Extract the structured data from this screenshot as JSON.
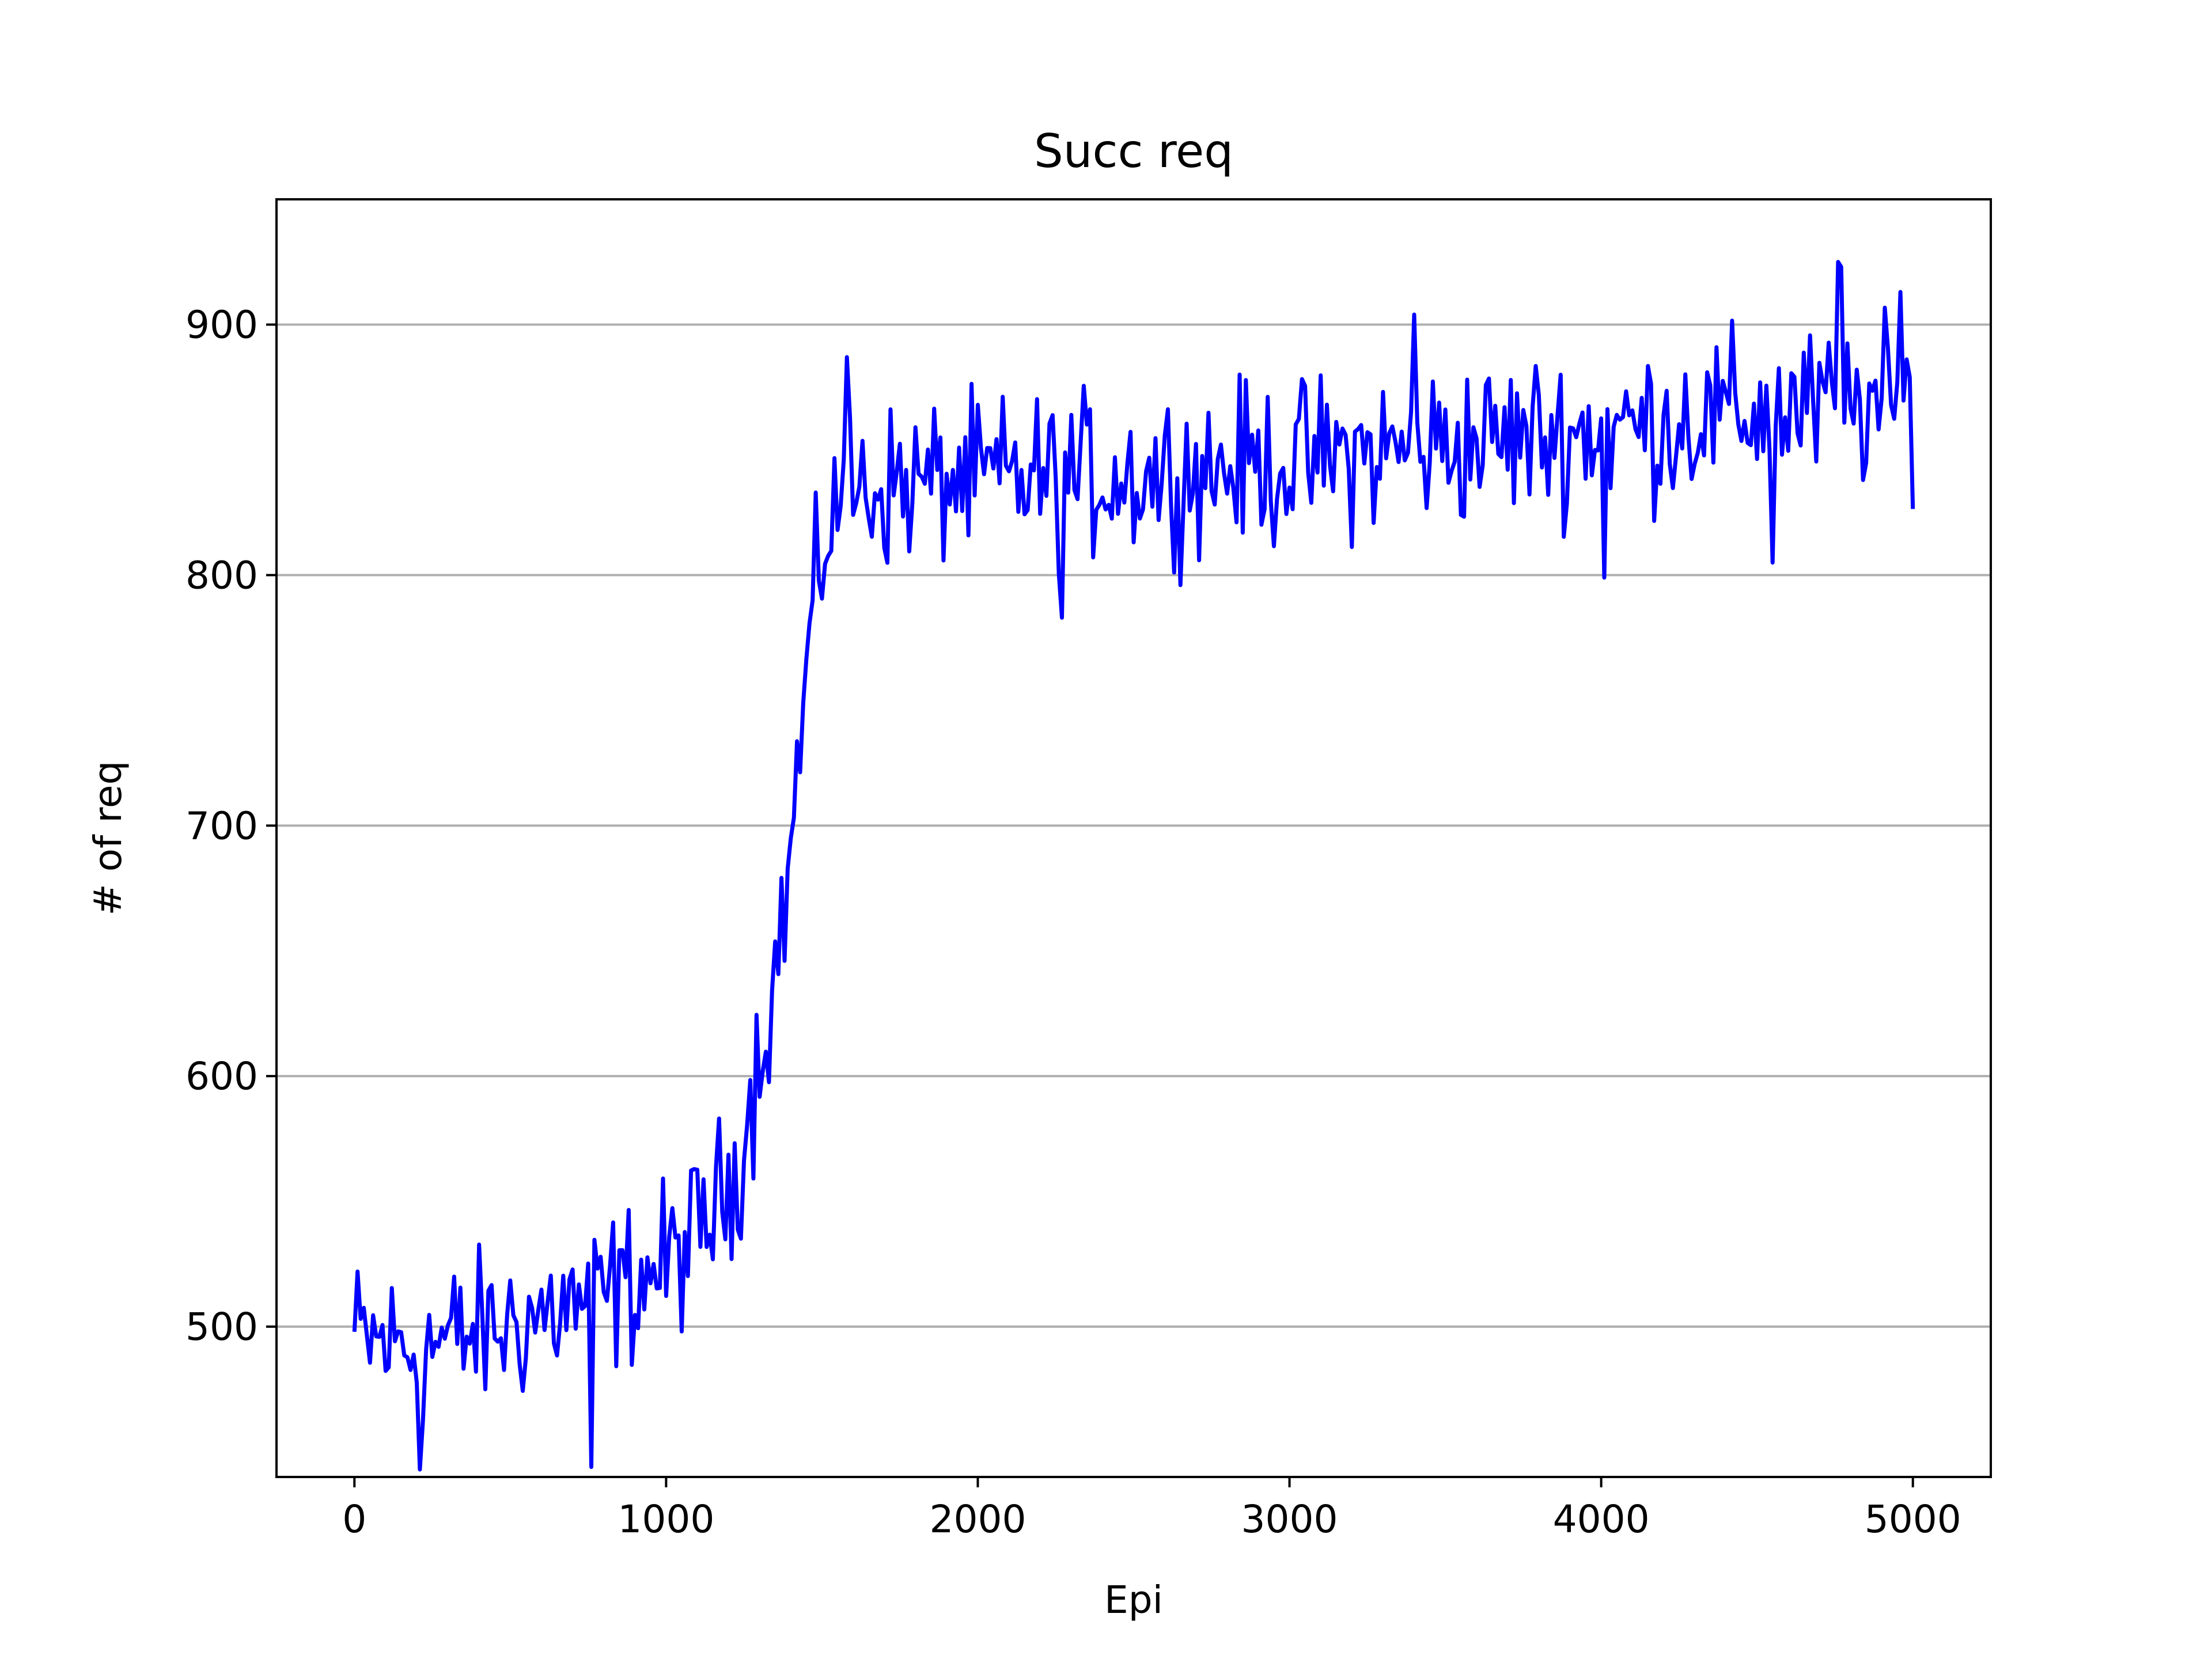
{
  "colors": {
    "series": "#0000ff",
    "grid": "#b0b0b0",
    "axes": "#000000",
    "background": "#ffffff"
  },
  "chart_data": {
    "type": "line",
    "title": "Succ req",
    "xlabel": "Epi",
    "ylabel": "# of req",
    "xlim": [
      -250,
      5250
    ],
    "ylim": [
      440,
      950
    ],
    "xticks": [
      0,
      1000,
      2000,
      3000,
      4000,
      5000
    ],
    "yticks": [
      500,
      600,
      700,
      800,
      900
    ],
    "grid": "y-major",
    "legend": "none",
    "series": [
      {
        "x_start": 0,
        "x_end": 5000,
        "x_step": 10,
        "trend_points": [
          [
            0,
            495
          ],
          [
            200,
            492
          ],
          [
            400,
            497
          ],
          [
            600,
            505
          ],
          [
            800,
            512
          ],
          [
            1000,
            525
          ],
          [
            1100,
            537
          ],
          [
            1200,
            555
          ],
          [
            1250,
            575
          ],
          [
            1300,
            610
          ],
          [
            1350,
            640
          ],
          [
            1400,
            690
          ],
          [
            1450,
            760
          ],
          [
            1500,
            810
          ],
          [
            1550,
            833
          ],
          [
            1600,
            835
          ],
          [
            2000,
            838
          ],
          [
            2500,
            840
          ],
          [
            3000,
            845
          ],
          [
            3500,
            852
          ],
          [
            4000,
            858
          ],
          [
            4500,
            865
          ],
          [
            5000,
            868
          ]
        ],
        "noise_amplitude": 16,
        "extremes": [
          [
            210,
            443
          ],
          [
            760,
            444
          ],
          [
            2270,
            783
          ],
          [
            4010,
            799
          ],
          [
            4550,
            805
          ],
          [
            4760,
            925
          ],
          [
            4770,
            923
          ],
          [
            3400,
            904
          ],
          [
            1580,
            887
          ],
          [
            4960,
            913
          ]
        ]
      }
    ]
  }
}
